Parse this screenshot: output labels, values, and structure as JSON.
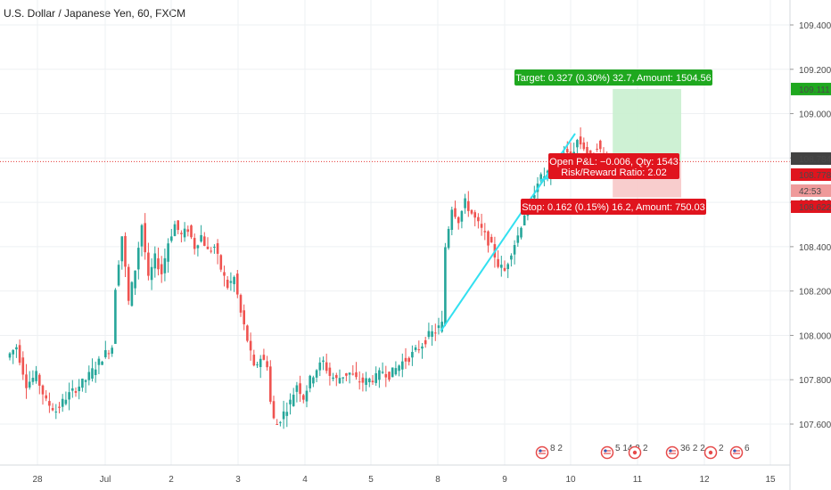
{
  "header": {
    "title": "U.S. Dollar / Japanese Yen, 60, FXCM"
  },
  "colors": {
    "up": "#26a69a",
    "down": "#ef5350",
    "trendline": "#33e0f0",
    "target_zone": "#c9efcf",
    "stop_zone": "#f7c8c8",
    "price_line": "#e53935",
    "target_label": "#1fa81f",
    "stop_label": "#e0141e"
  },
  "price_axis": {
    "ticks": [
      "109.400",
      "109.200",
      "109.000",
      "108.800",
      "108.600",
      "108.400",
      "108.200",
      "108.000",
      "107.800",
      "107.600"
    ]
  },
  "price_badges": {
    "target": "109.111",
    "last": "108.784",
    "current": "108.778",
    "countdown": "42:53",
    "stop": "108.622"
  },
  "time_axis": {
    "ticks": [
      "28",
      "Jul",
      "2",
      "3",
      "4",
      "5",
      "8",
      "9",
      "10",
      "11",
      "12",
      "15"
    ]
  },
  "position_tool": {
    "target_label": "Target: 0.327 (0.30%) 32.7, Amount: 1504.56",
    "open_pl": "Open P&L: −0.006, Qty: 1543",
    "risk_reward": "Risk/Reward Ratio: 2.02",
    "stop_label": "Stop: 0.162 (0.15%) 16.2, Amount: 750.03",
    "entry_price": 108.784,
    "target_price": 109.111,
    "stop_price": 108.622
  },
  "event_icons": [
    {
      "flag": "us-flag-icon",
      "count": "8 2"
    },
    {
      "flag": "us-flag-icon",
      "count": "5 14 2"
    },
    {
      "flag": "jp-flag-icon",
      "count": "2"
    },
    {
      "flag": "us-flag-icon",
      "count": "36 2 2"
    },
    {
      "flag": "jp-flag-icon",
      "count": "2"
    },
    {
      "flag": "us-flag-icon",
      "count": "6"
    }
  ],
  "chart_data": {
    "type": "candlestick",
    "title": "U.S. Dollar / Japanese Yen, 60, FXCM",
    "ylim": [
      107.45,
      109.55
    ],
    "x_ticks": [
      "28",
      "Jul",
      "2",
      "3",
      "4",
      "5",
      "8",
      "9",
      "10",
      "11",
      "12",
      "15"
    ],
    "y_ticks": [
      109.4,
      109.2,
      109.0,
      108.8,
      108.6,
      108.4,
      108.2,
      108.0,
      107.8,
      107.6
    ],
    "close_path": [
      [
        0,
        107.9
      ],
      [
        3,
        107.95
      ],
      [
        6,
        107.78
      ],
      [
        9,
        107.82
      ],
      [
        12,
        107.7
      ],
      [
        15,
        107.66
      ],
      [
        18,
        107.72
      ],
      [
        21,
        107.76
      ],
      [
        24,
        107.8
      ],
      [
        27,
        107.86
      ],
      [
        30,
        107.92
      ],
      [
        32,
        107.95
      ],
      [
        33,
        108.22
      ],
      [
        35,
        108.45
      ],
      [
        37,
        108.15
      ],
      [
        39,
        108.3
      ],
      [
        41,
        108.5
      ],
      [
        43,
        108.25
      ],
      [
        45,
        108.35
      ],
      [
        47,
        108.28
      ],
      [
        49,
        108.42
      ],
      [
        51,
        108.5
      ],
      [
        53,
        108.45
      ],
      [
        55,
        108.48
      ],
      [
        57,
        108.4
      ],
      [
        59,
        108.45
      ],
      [
        61,
        108.38
      ],
      [
        63,
        108.4
      ],
      [
        65,
        108.3
      ],
      [
        67,
        108.22
      ],
      [
        69,
        108.26
      ],
      [
        71,
        108.1
      ],
      [
        73,
        107.98
      ],
      [
        75,
        107.85
      ],
      [
        77,
        107.9
      ],
      [
        79,
        107.87
      ],
      [
        80,
        107.7
      ],
      [
        81,
        107.62
      ],
      [
        82,
        107.6
      ],
      [
        84,
        107.65
      ],
      [
        86,
        107.7
      ],
      [
        88,
        107.78
      ],
      [
        90,
        107.72
      ],
      [
        92,
        107.8
      ],
      [
        94,
        107.85
      ],
      [
        96,
        107.88
      ],
      [
        98,
        107.82
      ],
      [
        100,
        107.8
      ],
      [
        102,
        107.82
      ],
      [
        104,
        107.83
      ],
      [
        106,
        107.8
      ],
      [
        108,
        107.79
      ],
      [
        110,
        107.8
      ],
      [
        112,
        107.81
      ],
      [
        114,
        107.84
      ],
      [
        116,
        107.82
      ],
      [
        118,
        107.85
      ],
      [
        120,
        107.88
      ],
      [
        122,
        107.9
      ],
      [
        124,
        107.93
      ],
      [
        126,
        107.96
      ],
      [
        128,
        108.0
      ],
      [
        130,
        108.02
      ],
      [
        132,
        108.05
      ],
      [
        133,
        108.4
      ],
      [
        135,
        108.58
      ],
      [
        137,
        108.52
      ],
      [
        139,
        108.6
      ],
      [
        141,
        108.55
      ],
      [
        143,
        108.5
      ],
      [
        145,
        108.45
      ],
      [
        147,
        108.4
      ],
      [
        149,
        108.32
      ],
      [
        151,
        108.29
      ],
      [
        153,
        108.38
      ],
      [
        155,
        108.45
      ],
      [
        157,
        108.55
      ],
      [
        159,
        108.6
      ],
      [
        161,
        108.7
      ],
      [
        163,
        108.72
      ],
      [
        165,
        108.75
      ],
      [
        167,
        108.78
      ],
      [
        169,
        108.83
      ],
      [
        171,
        108.8
      ],
      [
        173,
        108.88
      ],
      [
        175,
        108.85
      ],
      [
        177,
        108.8
      ],
      [
        179,
        108.86
      ],
      [
        181,
        108.8
      ],
      [
        183,
        108.78
      ]
    ],
    "trendlines": [
      {
        "from": [
          132,
          108.02
        ],
        "to": [
          183,
          108.78
        ]
      },
      {
        "from": [
          162,
          108.7
        ],
        "to": [
          183,
          108.78
        ]
      }
    ],
    "position": {
      "entry": 108.784,
      "target": 109.111,
      "stop": 108.622,
      "start_bar": 176,
      "end_bar": 222
    }
  }
}
